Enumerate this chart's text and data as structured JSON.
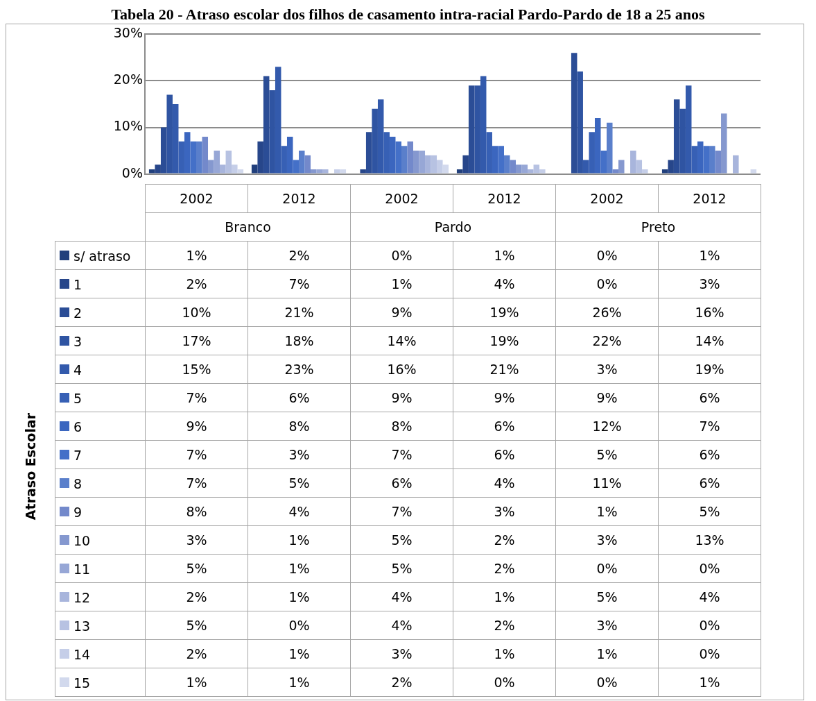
{
  "chart_data": {
    "type": "bar",
    "title": "Tabela 20 - Atraso escolar dos filhos de casamento intra-racial Pardo-Pardo de 18 a 25 anos",
    "legend_title": "Atraso Escolar",
    "categories": [
      "2002",
      "2012",
      "2002",
      "2012",
      "2002",
      "2012"
    ],
    "annotations": [
      "Branco",
      "Pardo",
      "Preto"
    ],
    "ylim": [
      0,
      30
    ],
    "yticks": [
      {
        "value": 0,
        "label": "0%"
      },
      {
        "value": 10,
        "label": "10%"
      },
      {
        "value": 20,
        "label": "20%"
      },
      {
        "value": 30,
        "label": "30%"
      }
    ],
    "grid": "y",
    "legend": "bottom",
    "series": [
      {
        "name": "s/ atraso",
        "color": "#213f7c",
        "values": [
          1,
          2,
          0,
          1,
          0,
          1
        ],
        "value_labels": [
          "1%",
          "2%",
          "0%",
          "1%",
          "0%",
          "1%"
        ]
      },
      {
        "name": "1",
        "color": "#27468a",
        "values": [
          2,
          7,
          1,
          4,
          0,
          3
        ],
        "value_labels": [
          "2%",
          "7%",
          "1%",
          "4%",
          "0%",
          "3%"
        ]
      },
      {
        "name": "2",
        "color": "#2b4d96",
        "values": [
          10,
          21,
          9,
          19,
          26,
          16
        ],
        "value_labels": [
          "10%",
          "21%",
          "9%",
          "19%",
          "26%",
          "16%"
        ]
      },
      {
        "name": "3",
        "color": "#2f54a2",
        "values": [
          17,
          18,
          14,
          19,
          22,
          14
        ],
        "value_labels": [
          "17%",
          "18%",
          "14%",
          "19%",
          "22%",
          "14%"
        ]
      },
      {
        "name": "4",
        "color": "#335aac",
        "values": [
          15,
          23,
          16,
          21,
          3,
          19
        ],
        "value_labels": [
          "15%",
          "23%",
          "16%",
          "21%",
          "3%",
          "19%"
        ]
      },
      {
        "name": "5",
        "color": "#3760b5",
        "values": [
          7,
          6,
          9,
          9,
          9,
          6
        ],
        "value_labels": [
          "7%",
          "6%",
          "9%",
          "9%",
          "9%",
          "6%"
        ]
      },
      {
        "name": "6",
        "color": "#3b66bf",
        "values": [
          9,
          8,
          8,
          6,
          12,
          7
        ],
        "value_labels": [
          "9%",
          "8%",
          "8%",
          "6%",
          "12%",
          "7%"
        ]
      },
      {
        "name": "7",
        "color": "#4470c8",
        "values": [
          7,
          3,
          7,
          6,
          5,
          6
        ],
        "value_labels": [
          "7%",
          "3%",
          "7%",
          "6%",
          "5%",
          "6%"
        ]
      },
      {
        "name": "8",
        "color": "#5a7fcb",
        "values": [
          7,
          5,
          6,
          4,
          11,
          6
        ],
        "value_labels": [
          "7%",
          "5%",
          "6%",
          "4%",
          "11%",
          "6%"
        ]
      },
      {
        "name": "9",
        "color": "#7389cb",
        "values": [
          8,
          4,
          7,
          3,
          1,
          5
        ],
        "value_labels": [
          "8%",
          "4%",
          "7%",
          "3%",
          "1%",
          "5%"
        ]
      },
      {
        "name": "10",
        "color": "#8598cf",
        "values": [
          3,
          1,
          5,
          2,
          3,
          13
        ],
        "value_labels": [
          "3%",
          "1%",
          "5%",
          "2%",
          "3%",
          "13%"
        ]
      },
      {
        "name": "11",
        "color": "#97a7d6",
        "values": [
          5,
          1,
          5,
          2,
          0,
          0
        ],
        "value_labels": [
          "5%",
          "1%",
          "5%",
          "2%",
          "0%",
          "0%"
        ]
      },
      {
        "name": "12",
        "color": "#a8b5dc",
        "values": [
          2,
          1,
          4,
          1,
          5,
          4
        ],
        "value_labels": [
          "2%",
          "1%",
          "4%",
          "1%",
          "5%",
          "4%"
        ]
      },
      {
        "name": "13",
        "color": "#b7c2e2",
        "values": [
          5,
          0,
          4,
          2,
          3,
          0
        ],
        "value_labels": [
          "5%",
          "0%",
          "4%",
          "2%",
          "3%",
          "0%"
        ]
      },
      {
        "name": "14",
        "color": "#c5cee8",
        "values": [
          2,
          1,
          3,
          1,
          1,
          0
        ],
        "value_labels": [
          "2%",
          "1%",
          "3%",
          "1%",
          "1%",
          "0%"
        ]
      },
      {
        "name": "15",
        "color": "#d2d9ed",
        "values": [
          1,
          1,
          2,
          0,
          0,
          1
        ],
        "value_labels": [
          "1%",
          "1%",
          "2%",
          "0%",
          "0%",
          "1%"
        ]
      }
    ]
  }
}
